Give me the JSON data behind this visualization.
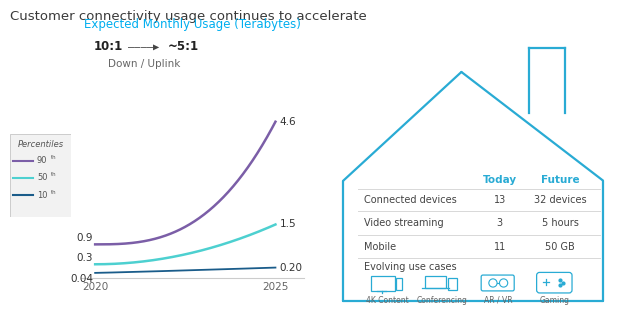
{
  "title": "Customer connectivity usage continues to accelerate",
  "title_color": "#3a3a3a",
  "chart_subtitle": "Expected Monthly Usage (Terabytes)",
  "chart_subtitle_color": "#00AEEF",
  "ratio_text_bold": "10:1",
  "ratio_text_end": "~5:1",
  "ratio_sub": "Down / Uplink",
  "years": [
    2020,
    2025
  ],
  "line_90_values": [
    0.9,
    4.6
  ],
  "line_50_values": [
    0.3,
    1.5
  ],
  "line_10_values": [
    0.04,
    0.2
  ],
  "line_90_color": "#7B5EA7",
  "line_50_color": "#4DD0D0",
  "line_10_color": "#1A5C8A",
  "label_2020_90": "0.9",
  "label_2020_50": "0.3",
  "label_2020_10": "0.04",
  "label_2025_90": "4.6",
  "label_2025_50": "1.5",
  "label_2025_10": "0.20",
  "house_color": "#29ABD4",
  "table_header_today": "Today",
  "table_header_future": "Future",
  "table_header_color": "#29ABD4",
  "table_rows": [
    [
      "Connected devices",
      "13",
      "32 devices"
    ],
    [
      "Video streaming",
      "3",
      "5 hours"
    ],
    [
      "Mobile",
      "11",
      "50 GB"
    ]
  ],
  "evolving_label": "Evolving use cases",
  "icons_labels": [
    "4K Content",
    "Conferencing",
    "AR / VR",
    "Gaming"
  ],
  "background_color": "#FFFFFF",
  "text_color": "#555555",
  "row_label_color": "#444444"
}
